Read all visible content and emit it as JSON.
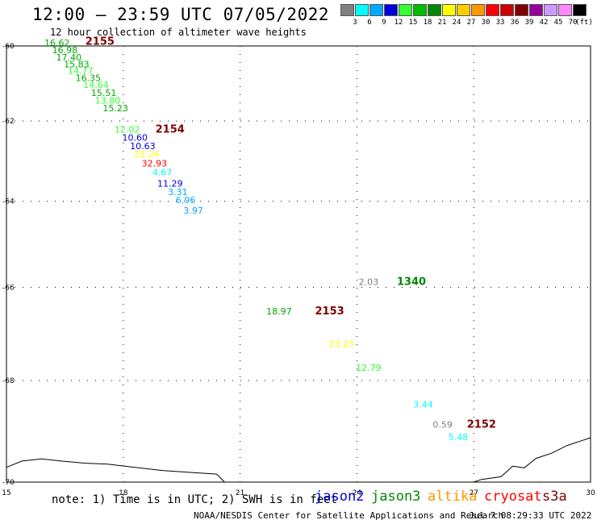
{
  "title": "12:00 – 23:59 UTC 07/05/2022",
  "subtitle": "12 hour collection of altimeter wave heights",
  "legend": {
    "unit_label": "(ft)",
    "bins": [
      {
        "label": "3",
        "color": "#808080"
      },
      {
        "label": "6",
        "color": "#00ffff"
      },
      {
        "label": "9",
        "color": "#00aaff"
      },
      {
        "label": "12",
        "color": "#0000dd"
      },
      {
        "label": "15",
        "color": "#33ff33"
      },
      {
        "label": "18",
        "color": "#00bb00"
      },
      {
        "label": "21",
        "color": "#008800"
      },
      {
        "label": "24",
        "color": "#ffff00"
      },
      {
        "label": "27",
        "color": "#ffcc00"
      },
      {
        "label": "30",
        "color": "#ff9900"
      },
      {
        "label": "33",
        "color": "#ff0000"
      },
      {
        "label": "36",
        "color": "#cc0000"
      },
      {
        "label": "39",
        "color": "#800000"
      },
      {
        "label": "42",
        "color": "#990099"
      },
      {
        "label": "45",
        "color": "#cc99ff"
      },
      {
        "label": "70",
        "color": "#ff88ff"
      },
      {
        "label": "",
        "color": "#000000"
      }
    ]
  },
  "map": {
    "lat_labels": [
      "-60",
      "-62",
      "-64",
      "-66",
      "-68",
      "-70"
    ],
    "lon_labels": [
      "15",
      "18",
      "21",
      "24",
      "27",
      "30"
    ],
    "projection": "mercator"
  },
  "observations": [
    {
      "text": "16.62",
      "lon": 16.3,
      "lat": -60.0,
      "color": "#00aa00"
    },
    {
      "text": "16.98",
      "lon": 16.5,
      "lat": -60.2,
      "color": "#00aa00"
    },
    {
      "text": "17.40",
      "lon": 16.6,
      "lat": -60.4,
      "color": "#00aa00"
    },
    {
      "text": "15.83",
      "lon": 16.8,
      "lat": -60.58,
      "color": "#00aa00"
    },
    {
      "text": "14.77",
      "lon": 16.9,
      "lat": -60.76,
      "color": "#33ff33"
    },
    {
      "text": "16.35",
      "lon": 17.1,
      "lat": -60.95,
      "color": "#00aa00"
    },
    {
      "text": "14.64",
      "lon": 17.3,
      "lat": -61.13,
      "color": "#33ff33"
    },
    {
      "text": "15.51",
      "lon": 17.5,
      "lat": -61.35,
      "color": "#00aa00"
    },
    {
      "text": "13.80",
      "lon": 17.6,
      "lat": -61.55,
      "color": "#33ff33"
    },
    {
      "text": "15.23",
      "lon": 17.8,
      "lat": -61.75,
      "color": "#00aa00"
    },
    {
      "text": "12.02",
      "lon": 18.1,
      "lat": -62.3,
      "color": "#33ff33"
    },
    {
      "text": "10.60",
      "lon": 18.3,
      "lat": -62.5,
      "color": "#0000dd"
    },
    {
      "text": "10.63",
      "lon": 18.5,
      "lat": -62.72,
      "color": "#0000dd"
    },
    {
      "text": "23.24",
      "lon": 18.6,
      "lat": -62.92,
      "color": "#ffff00"
    },
    {
      "text": "32.93",
      "lon": 18.8,
      "lat": -63.15,
      "color": "#ff0000"
    },
    {
      "text": "4.67",
      "lon": 19.0,
      "lat": -63.37,
      "color": "#00ffff"
    },
    {
      "text": "11.29",
      "lon": 19.2,
      "lat": -63.65,
      "color": "#0000dd"
    },
    {
      "text": "3.31",
      "lon": 19.4,
      "lat": -63.85,
      "color": "#00aaff"
    },
    {
      "text": "6.96",
      "lon": 19.6,
      "lat": -64.05,
      "color": "#00aaff"
    },
    {
      "text": "3.97",
      "lon": 19.8,
      "lat": -64.3,
      "color": "#00aaff"
    },
    {
      "text": "2.03",
      "lon": 24.3,
      "lat": -65.95,
      "color": "#808080"
    },
    {
      "text": "18.97",
      "lon": 22.0,
      "lat": -66.6,
      "color": "#00aa00"
    },
    {
      "text": "23.25",
      "lon": 23.6,
      "lat": -67.3,
      "color": "#ffff00"
    },
    {
      "text": "12.79",
      "lon": 24.3,
      "lat": -67.8,
      "color": "#33ff33"
    },
    {
      "text": "3.44",
      "lon": 25.7,
      "lat": -68.55,
      "color": "#00ffff"
    },
    {
      "text": "0.59",
      "lon": 26.2,
      "lat": -68.95,
      "color": "#808080"
    },
    {
      "text": "5.48",
      "lon": 26.6,
      "lat": -69.2,
      "color": "#00ffff"
    }
  ],
  "time_labels": [
    {
      "text": "2155",
      "lon": 17.4,
      "lat": -59.97
    },
    {
      "text": "2154",
      "lon": 19.2,
      "lat": -62.3
    },
    {
      "text": "1340",
      "lon": 25.4,
      "lat": -65.95
    },
    {
      "text": "2153",
      "lon": 23.3,
      "lat": -66.6
    },
    {
      "text": "2152",
      "lon": 27.2,
      "lat": -68.95
    }
  ],
  "time_label_color": "#800000",
  "time_label_color_jason3": "#008800",
  "footer": {
    "note": "note: 1) Time is in UTC; 2) SWH is in feet",
    "satellites": [
      {
        "name": "jason2",
        "color": "#0000dd"
      },
      {
        "name": "jason3",
        "color": "#008800"
      },
      {
        "name": "altika",
        "color": "#ff9900"
      },
      {
        "name": "cryosat",
        "color": "#ff0000"
      },
      {
        "name": "s3a",
        "color": "#800000"
      }
    ],
    "credit": "NOAA/NESDIS Center for Satellite Applications and Research",
    "generated": "Jul  7 08:29:33 UTC 2022"
  }
}
